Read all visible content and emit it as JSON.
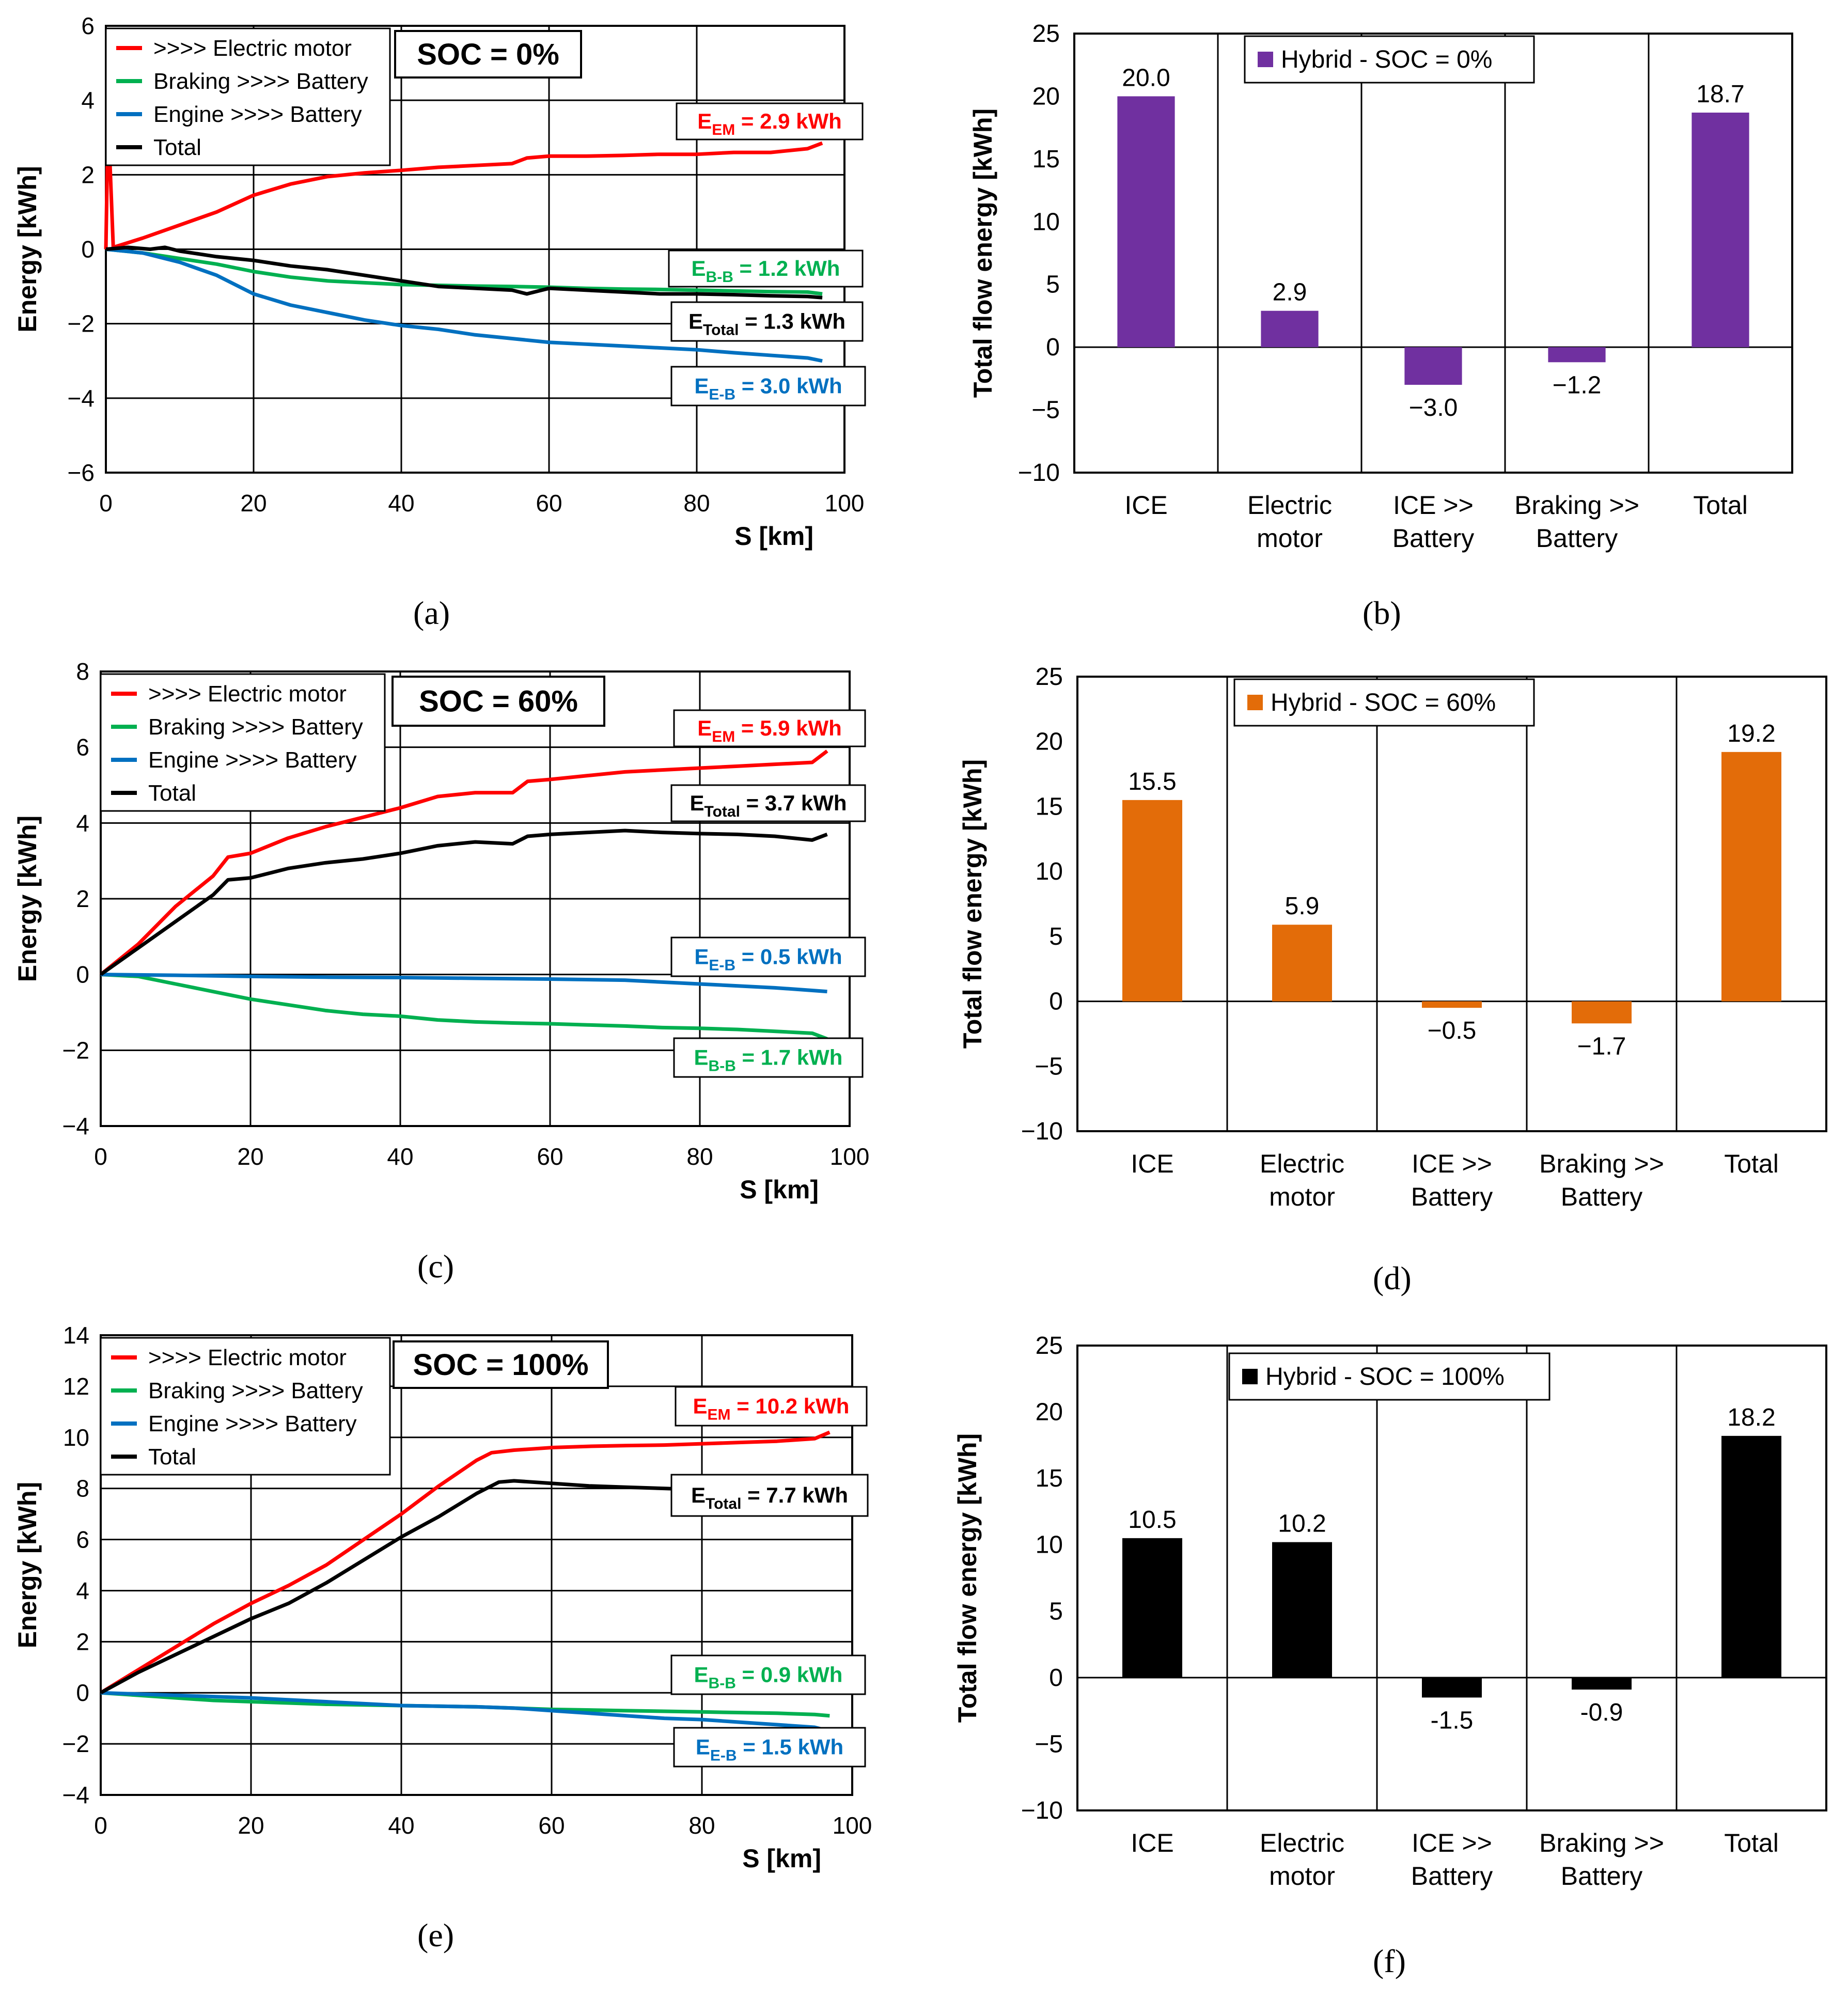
{
  "figure": {
    "captions": [
      "(a)",
      "(b)",
      "(c)",
      "(d)",
      "(e)",
      "(f)"
    ]
  },
  "chart_data": [
    {
      "id": "a",
      "type": "line",
      "caption": "(a)",
      "title": "SOC = 0%",
      "xlabel": "S [km]",
      "ylabel": "Energy [kWh]",
      "xlim": [
        0,
        100
      ],
      "ylim": [
        -6,
        6
      ],
      "xticks": [
        0,
        20,
        40,
        60,
        80,
        100
      ],
      "yticks": [
        -6,
        -4,
        -2,
        0,
        2,
        4,
        6
      ],
      "grid": true,
      "legend_position": "top-left",
      "series": [
        {
          "name": ">>>> Electric motor",
          "color": "#ff0000",
          "x": [
            0,
            0.3,
            1,
            5,
            10,
            15,
            20,
            25,
            30,
            35,
            40,
            45,
            50,
            55,
            57,
            60,
            65,
            70,
            75,
            80,
            85,
            90,
            95,
            97
          ],
          "y": [
            0,
            3.6,
            0.05,
            0.3,
            0.65,
            1.0,
            1.45,
            1.75,
            1.95,
            2.05,
            2.12,
            2.2,
            2.25,
            2.3,
            2.45,
            2.5,
            2.5,
            2.52,
            2.55,
            2.55,
            2.6,
            2.6,
            2.7,
            2.85
          ]
        },
        {
          "name": "Braking >>>> Battery",
          "color": "#00b050",
          "x": [
            0,
            5,
            10,
            15,
            20,
            25,
            30,
            35,
            40,
            45,
            50,
            55,
            60,
            65,
            70,
            75,
            80,
            85,
            90,
            95,
            97
          ],
          "y": [
            0,
            -0.1,
            -0.25,
            -0.4,
            -0.6,
            -0.75,
            -0.85,
            -0.9,
            -0.95,
            -0.97,
            -0.99,
            -1.0,
            -1.02,
            -1.05,
            -1.07,
            -1.08,
            -1.1,
            -1.12,
            -1.14,
            -1.15,
            -1.2
          ]
        },
        {
          "name": "Engine >>>> Battery",
          "color": "#0070c0",
          "x": [
            0,
            5,
            10,
            15,
            20,
            25,
            30,
            35,
            40,
            45,
            50,
            55,
            60,
            65,
            70,
            75,
            80,
            85,
            90,
            95,
            97
          ],
          "y": [
            0,
            -0.1,
            -0.35,
            -0.7,
            -1.2,
            -1.5,
            -1.7,
            -1.9,
            -2.05,
            -2.15,
            -2.3,
            -2.4,
            -2.5,
            -2.55,
            -2.6,
            -2.65,
            -2.7,
            -2.78,
            -2.85,
            -2.92,
            -3.0
          ]
        },
        {
          "name": "Total",
          "color": "#000000",
          "x": [
            0,
            3,
            6,
            8,
            10,
            15,
            20,
            25,
            30,
            35,
            40,
            45,
            50,
            55,
            57,
            60,
            65,
            70,
            75,
            80,
            85,
            90,
            95,
            97
          ],
          "y": [
            0,
            0.05,
            0.0,
            0.05,
            -0.05,
            -0.2,
            -0.3,
            -0.45,
            -0.55,
            -0.7,
            -0.85,
            -1.0,
            -1.05,
            -1.1,
            -1.2,
            -1.05,
            -1.1,
            -1.15,
            -1.2,
            -1.2,
            -1.22,
            -1.25,
            -1.27,
            -1.3
          ]
        }
      ],
      "annotations": [
        {
          "text": "E",
          "sub": "EM",
          "rest": " = 2.9 kWh",
          "color": "#ff0000"
        },
        {
          "text": "E",
          "sub": "B-B",
          "rest": " = 1.2 kWh",
          "color": "#00b050"
        },
        {
          "text": "E",
          "sub": "Total",
          "rest": " = 1.3 kWh",
          "color": "#000000"
        },
        {
          "text": "E",
          "sub": "E-B",
          "rest": " = 3.0 kWh",
          "color": "#0070c0"
        }
      ]
    },
    {
      "id": "b",
      "type": "bar",
      "caption": "(b)",
      "ylabel": "Total flow energy [kWh]",
      "ylim": [
        -10,
        25
      ],
      "yticks": [
        -10,
        -5,
        0,
        5,
        10,
        15,
        20,
        25
      ],
      "grid": true,
      "legend_position": "top-center",
      "categories": [
        [
          "ICE"
        ],
        [
          "Electric",
          "motor"
        ],
        [
          "ICE >>",
          "Battery"
        ],
        [
          "Braking >>",
          "Battery"
        ],
        [
          "Total"
        ]
      ],
      "series": [
        {
          "name": "Hybrid - SOC = 0%",
          "color": "#7030a0",
          "values": [
            20.0,
            2.9,
            -3.0,
            -1.2,
            18.7
          ]
        }
      ],
      "labels": [
        "20.0",
        "2.9",
        "−3.0",
        "−1.2",
        "18.7"
      ]
    },
    {
      "id": "c",
      "type": "line",
      "caption": "(c)",
      "title": "SOC = 60%",
      "xlabel": "S [km]",
      "ylabel": "Energy [kWh]",
      "xlim": [
        0,
        100
      ],
      "ylim": [
        -4,
        8
      ],
      "xticks": [
        0,
        20,
        40,
        60,
        80,
        100
      ],
      "yticks": [
        -4,
        -2,
        0,
        2,
        4,
        6,
        8
      ],
      "grid": true,
      "legend_position": "top-left",
      "series": [
        {
          "name": ">>>> Electric motor",
          "color": "#ff0000",
          "x": [
            0,
            5,
            10,
            15,
            17,
            20,
            25,
            30,
            35,
            40,
            45,
            50,
            55,
            57,
            60,
            65,
            70,
            75,
            80,
            85,
            90,
            95,
            97
          ],
          "y": [
            0,
            0.8,
            1.8,
            2.6,
            3.1,
            3.2,
            3.6,
            3.9,
            4.15,
            4.4,
            4.7,
            4.8,
            4.8,
            5.1,
            5.15,
            5.25,
            5.35,
            5.4,
            5.45,
            5.5,
            5.55,
            5.6,
            5.9
          ]
        },
        {
          "name": "Braking >>>> Battery",
          "color": "#00b050",
          "x": [
            0,
            5,
            10,
            15,
            20,
            25,
            30,
            35,
            40,
            45,
            50,
            55,
            60,
            65,
            70,
            75,
            80,
            85,
            90,
            95,
            97
          ],
          "y": [
            0,
            -0.05,
            -0.25,
            -0.45,
            -0.65,
            -0.8,
            -0.95,
            -1.05,
            -1.1,
            -1.2,
            -1.25,
            -1.28,
            -1.3,
            -1.33,
            -1.36,
            -1.4,
            -1.42,
            -1.45,
            -1.5,
            -1.55,
            -1.7
          ]
        },
        {
          "name": "Engine >>>> Battery",
          "color": "#0070c0",
          "x": [
            0,
            10,
            20,
            30,
            40,
            50,
            60,
            70,
            80,
            90,
            95,
            97
          ],
          "y": [
            0,
            -0.02,
            -0.05,
            -0.07,
            -0.08,
            -0.1,
            -0.12,
            -0.15,
            -0.25,
            -0.35,
            -0.42,
            -0.45
          ]
        },
        {
          "name": "Total",
          "color": "#000000",
          "x": [
            0,
            5,
            10,
            15,
            17,
            20,
            25,
            30,
            35,
            40,
            45,
            50,
            55,
            57,
            60,
            65,
            70,
            75,
            80,
            85,
            90,
            95,
            97
          ],
          "y": [
            0,
            0.7,
            1.4,
            2.1,
            2.5,
            2.55,
            2.8,
            2.95,
            3.05,
            3.2,
            3.4,
            3.5,
            3.45,
            3.65,
            3.7,
            3.75,
            3.8,
            3.75,
            3.72,
            3.7,
            3.65,
            3.55,
            3.7
          ]
        }
      ],
      "annotations": [
        {
          "text": "E",
          "sub": "EM",
          "rest": " = 5.9 kWh",
          "color": "#ff0000"
        },
        {
          "text": "E",
          "sub": "Total",
          "rest": " = 3.7 kWh",
          "color": "#000000"
        },
        {
          "text": "E",
          "sub": "E-B",
          "rest": " = 0.5 kWh",
          "color": "#0070c0"
        },
        {
          "text": "E",
          "sub": "B-B",
          "rest": " = 1.7 kWh",
          "color": "#00b050"
        }
      ]
    },
    {
      "id": "d",
      "type": "bar",
      "caption": "(d)",
      "ylabel": "Total flow energy [kWh]",
      "ylim": [
        -10,
        25
      ],
      "yticks": [
        -10,
        -5,
        0,
        5,
        10,
        15,
        20,
        25
      ],
      "grid": true,
      "legend_position": "top-center",
      "categories": [
        [
          "ICE"
        ],
        [
          "Electric",
          "motor"
        ],
        [
          "ICE >>",
          "Battery"
        ],
        [
          "Braking >>",
          "Battery"
        ],
        [
          "Total"
        ]
      ],
      "series": [
        {
          "name": "Hybrid - SOC = 60%",
          "color": "#e36c09",
          "values": [
            15.5,
            5.9,
            -0.5,
            -1.7,
            19.2
          ]
        }
      ],
      "labels": [
        "15.5",
        "5.9",
        "−0.5",
        "−1.7",
        "19.2"
      ]
    },
    {
      "id": "e",
      "type": "line",
      "caption": "(e)",
      "title": "SOC = 100%",
      "xlabel": "S [km]",
      "ylabel": "Energy [kWh]",
      "xlim": [
        0,
        100
      ],
      "ylim": [
        -4,
        14
      ],
      "xticks": [
        0,
        20,
        40,
        60,
        80,
        100
      ],
      "yticks": [
        -4,
        -2,
        0,
        2,
        4,
        6,
        8,
        10,
        12,
        14
      ],
      "grid": true,
      "legend_position": "top-left",
      "series": [
        {
          "name": ">>>> Electric motor",
          "color": "#ff0000",
          "x": [
            0,
            5,
            10,
            15,
            20,
            25,
            30,
            35,
            40,
            45,
            50,
            52,
            55,
            60,
            65,
            70,
            75,
            80,
            85,
            90,
            95,
            97
          ],
          "y": [
            0,
            0.9,
            1.8,
            2.7,
            3.5,
            4.2,
            5.0,
            6.0,
            7.0,
            8.1,
            9.1,
            9.4,
            9.5,
            9.6,
            9.65,
            9.68,
            9.7,
            9.75,
            9.8,
            9.85,
            9.95,
            10.2
          ]
        },
        {
          "name": "Braking >>>> Battery",
          "color": "#00b050",
          "x": [
            0,
            5,
            10,
            15,
            20,
            25,
            30,
            40,
            50,
            55,
            60,
            70,
            80,
            90,
            95,
            97
          ],
          "y": [
            0,
            -0.1,
            -0.2,
            -0.3,
            -0.35,
            -0.4,
            -0.45,
            -0.5,
            -0.55,
            -0.6,
            -0.65,
            -0.7,
            -0.75,
            -0.8,
            -0.85,
            -0.9
          ]
        },
        {
          "name": "Engine >>>> Battery",
          "color": "#0070c0",
          "x": [
            0,
            5,
            10,
            20,
            30,
            40,
            50,
            55,
            60,
            65,
            70,
            75,
            80,
            85,
            90,
            95,
            97
          ],
          "y": [
            0,
            -0.05,
            -0.1,
            -0.2,
            -0.35,
            -0.5,
            -0.55,
            -0.6,
            -0.7,
            -0.8,
            -0.9,
            -1.0,
            -1.05,
            -1.15,
            -1.25,
            -1.35,
            -1.5
          ]
        },
        {
          "name": "Total",
          "color": "#000000",
          "x": [
            0,
            5,
            10,
            15,
            20,
            25,
            30,
            35,
            40,
            45,
            50,
            53,
            55,
            60,
            65,
            70,
            75,
            80,
            85,
            90,
            95,
            97
          ],
          "y": [
            0,
            0.8,
            1.5,
            2.2,
            2.9,
            3.5,
            4.3,
            5.2,
            6.1,
            6.9,
            7.8,
            8.25,
            8.3,
            8.2,
            8.1,
            8.05,
            8.0,
            7.95,
            7.9,
            7.85,
            7.75,
            7.7
          ]
        }
      ],
      "annotations": [
        {
          "text": "E",
          "sub": "EM",
          "rest": " = 10.2 kWh",
          "color": "#ff0000"
        },
        {
          "text": "E",
          "sub": "Total",
          "rest": " = 7.7 kWh",
          "color": "#000000"
        },
        {
          "text": "E",
          "sub": "B-B",
          "rest": " = 0.9 kWh",
          "color": "#00b050"
        },
        {
          "text": "E",
          "sub": "E-B",
          "rest": " = 1.5 kWh",
          "color": "#0070c0"
        }
      ]
    },
    {
      "id": "f",
      "type": "bar",
      "caption": "(f)",
      "ylabel": "Total flow energy [kWh]",
      "ylim": [
        -10,
        25
      ],
      "yticks": [
        -10,
        -5,
        0,
        5,
        10,
        15,
        20,
        25
      ],
      "grid": true,
      "legend_position": "top-center",
      "categories": [
        [
          "ICE"
        ],
        [
          "Electric",
          "motor"
        ],
        [
          "ICE >>",
          "Battery"
        ],
        [
          "Braking >>",
          "Battery"
        ],
        [
          "Total"
        ]
      ],
      "series": [
        {
          "name": "Hybrid - SOC = 100%",
          "color": "#000000",
          "values": [
            10.5,
            10.2,
            -1.5,
            -0.9,
            18.2
          ]
        }
      ],
      "labels": [
        "10.5",
        "10.2",
        "-1.5",
        "-0.9",
        "18.2"
      ]
    }
  ]
}
